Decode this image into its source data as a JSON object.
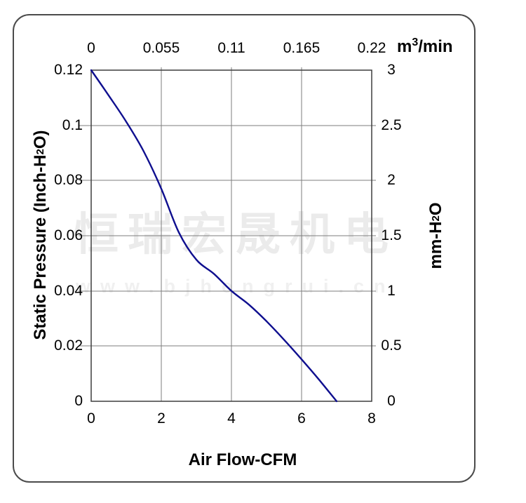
{
  "watermark": {
    "line1": "恒瑞宏晟机电",
    "line2": "www.bjhengrui.cn",
    "color1": "#ebebeb",
    "color2": "#f0f0f0"
  },
  "labels": {
    "left_title_parts": [
      "Static Pressure (Inch-H",
      "2",
      "O)"
    ],
    "right_title_parts": [
      "mm-H",
      "2",
      "O"
    ],
    "top_unit_parts": [
      "m",
      "3",
      "/min"
    ],
    "bottom_title": "Air Flow-CFM"
  },
  "colors": {
    "curve": "#0f0f8f",
    "grid": "#7e7e7e",
    "plot_border": "#3d3d3d",
    "frame_border": "#4b4b4b",
    "text": "#000000"
  },
  "chart_data": {
    "type": "line",
    "title": "",
    "grid": true,
    "legend": false,
    "x_bottom": {
      "label": "Air Flow-CFM",
      "tick_labels": [
        "0",
        "2",
        "4",
        "6",
        "8"
      ],
      "range": [
        0,
        8
      ]
    },
    "x_top": {
      "label": "m³/min",
      "tick_labels": [
        "0",
        "0.055",
        "0.11",
        "0.165",
        "0.22"
      ],
      "range": [
        0,
        0.22
      ]
    },
    "y_left": {
      "label": "Static Pressure (Inch-H₂O)",
      "tick_labels": [
        "0.12",
        "0.1",
        "0.08",
        "0.06",
        "0.04",
        "0.02",
        "0"
      ],
      "range": [
        0,
        0.12
      ]
    },
    "y_right": {
      "label": "mm-H₂O",
      "tick_labels": [
        "3",
        "2.5",
        "2",
        "1.5",
        "1",
        "0.5",
        "0"
      ],
      "range": [
        0,
        3
      ]
    },
    "series": [
      {
        "name": "fan-performance-curve",
        "color": "#0f0f8f",
        "x_cfm": [
          0,
          0.5,
          1,
          1.5,
          2,
          2.5,
          3,
          3.5,
          4,
          4.5,
          5,
          5.5,
          6,
          6.5,
          7
        ],
        "y_inch_h2o": [
          0.12,
          0.1108,
          0.1013,
          0.0905,
          0.077,
          0.0612,
          0.0513,
          0.0462,
          0.04,
          0.035,
          0.029,
          0.0223,
          0.0152,
          0.0078,
          0
        ]
      }
    ]
  }
}
